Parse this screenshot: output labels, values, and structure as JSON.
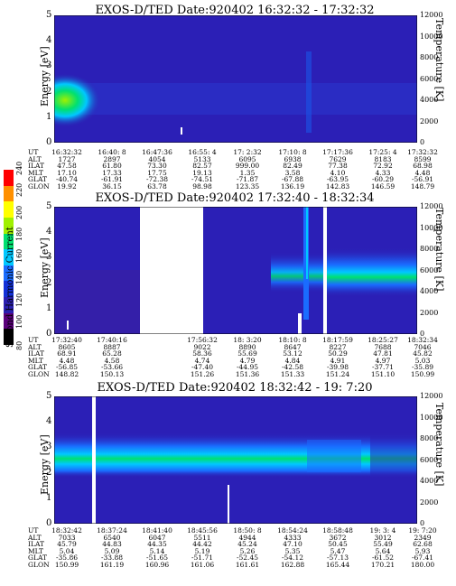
{
  "chart_data": [
    {
      "type": "heatmap",
      "title": "EXOS-D/TED   Date:920402   16:32:32 - 17:32:32",
      "ylabel": "Energy [eV]",
      "y2label": "Temperature [K]",
      "ylim": [
        0,
        5
      ],
      "y2lim": [
        0,
        12000
      ],
      "yticks": [
        "0",
        "1",
        "2",
        "3",
        "4",
        "5"
      ],
      "y2ticks": [
        "0",
        "2000",
        "4000",
        "6000",
        "8000",
        "10000",
        "12000"
      ],
      "table": {
        "labels": [
          "UT",
          "ALT",
          "ILAT",
          "MLT",
          "GLAT",
          "GLON"
        ],
        "columns": [
          [
            "16:32:32",
            "1727",
            "47.58",
            "17.10",
            "-40.74",
            "19.92"
          ],
          [
            "16:40: 8",
            "2897",
            "61.80",
            "17.33",
            "-61.91",
            "36.15"
          ],
          [
            "16:47:36",
            "4054",
            "73.30",
            "17.75",
            "-72.38",
            "63.78"
          ],
          [
            "16:55: 4",
            "5133",
            "82.57",
            "19.13",
            "-74.51",
            "98.98"
          ],
          [
            "17: 2:32",
            "6095",
            "999.00",
            "1.35",
            "-71.87",
            "123.35"
          ],
          [
            "17:10: 8",
            "6938",
            "82.49",
            "3.58",
            "-67.88",
            "136.19"
          ],
          [
            "17:17:36",
            "7629",
            "77.38",
            "4.10",
            "-63.95",
            "142.83"
          ],
          [
            "17:25: 4",
            "8183",
            "72.92",
            "4.33",
            "-60.29",
            "146.59"
          ],
          [
            "17:32:32",
            "8599",
            "68.98",
            "4.48",
            "-56.91",
            "148.79"
          ]
        ]
      }
    },
    {
      "type": "heatmap",
      "title": "EXOS-D/TED   Date:920402   17:32:40 - 18:32:34",
      "ylabel": "Energy [eV]",
      "y2label": "Temperature [K]",
      "ylim": [
        0,
        5
      ],
      "y2lim": [
        0,
        12000
      ],
      "yticks": [
        "0",
        "1",
        "2",
        "3",
        "4",
        "5"
      ],
      "y2ticks": [
        "0",
        "2000",
        "4000",
        "6000",
        "8000",
        "10000",
        "12000"
      ],
      "table": {
        "labels": [
          "UT",
          "ALT",
          "ILAT",
          "MLT",
          "GLAT",
          "GLON"
        ],
        "columns": [
          [
            "17:32:40",
            "8605",
            "68.91",
            "4.48",
            "-56.85",
            "148.82"
          ],
          [
            "17:40:16",
            "8887",
            "65.28",
            "4.58",
            "-53.66",
            "150.13"
          ],
          [
            "",
            "",
            "",
            "",
            "",
            ""
          ],
          [
            "17:56:32",
            "9022",
            "58.36",
            "4.74",
            "-47.40",
            "151.26"
          ],
          [
            "18: 3:20",
            "8890",
            "55.69",
            "4.79",
            "-44.95",
            "151.36"
          ],
          [
            "18:10: 8",
            "8647",
            "53.12",
            "4.84",
            "-42.58",
            "151.33"
          ],
          [
            "18:17:59",
            "8227",
            "50.29",
            "4.91",
            "-39.98",
            "151.24"
          ],
          [
            "18:25:27",
            "7688",
            "47.81",
            "4.97",
            "-37.71",
            "151.10"
          ],
          [
            "18:32:34",
            "7046",
            "45.82",
            "5.03",
            "-35.89",
            "150.99"
          ]
        ]
      }
    },
    {
      "type": "heatmap",
      "title": "EXOS-D/TED   Date:920402   18:32:42 - 19: 7:20",
      "ylabel": "Energy [eV]",
      "y2label": "Temperature [K]",
      "ylim": [
        0,
        5
      ],
      "y2lim": [
        0,
        12000
      ],
      "yticks": [
        "0",
        "1",
        "2",
        "3",
        "4",
        "5"
      ],
      "y2ticks": [
        "0",
        "2000",
        "4000",
        "6000",
        "8000",
        "10000",
        "12000"
      ],
      "table": {
        "labels": [
          "UT",
          "ALT",
          "ILAT",
          "MLT",
          "GLAT",
          "GLON"
        ],
        "columns": [
          [
            "18:32:42",
            "7033",
            "45.79",
            "5.04",
            "-35.86",
            "150.99"
          ],
          [
            "18:37:24",
            "6540",
            "44.83",
            "5.09",
            "-33.88",
            "161.19"
          ],
          [
            "18:41:40",
            "6047",
            "44.35",
            "5.14",
            "-51.65",
            "160.96"
          ],
          [
            "18:45:56",
            "5511",
            "44.42",
            "5.19",
            "-51.71",
            "161.06"
          ],
          [
            "18:50: 8",
            "4944",
            "45.24",
            "5.26",
            "-52.45",
            "161.61"
          ],
          [
            "18:54:24",
            "4333",
            "47.10",
            "5.35",
            "-54.12",
            "162.88"
          ],
          [
            "18:58:48",
            "3672",
            "50.45",
            "5.47",
            "-57.13",
            "165.44"
          ],
          [
            "19: 3: 4",
            "3012",
            "55.49",
            "5.64",
            "-61.52",
            "170.21"
          ],
          [
            "19: 7:20",
            "2349",
            "62.68",
            "5.93",
            "-67.41",
            "180.00"
          ]
        ]
      }
    }
  ],
  "colorbar": {
    "label": "Second Harmonic Current",
    "ticks": [
      "80",
      "100",
      "120",
      "140",
      "160",
      "180",
      "200",
      "220",
      "240"
    ],
    "colors": [
      "#000000",
      "#5a007a",
      "#2a1fb0",
      "#1230d8",
      "#1a6cff",
      "#00c8ff",
      "#00e070",
      "#a0f000",
      "#ffff00",
      "#ff9000",
      "#ff0000"
    ]
  }
}
